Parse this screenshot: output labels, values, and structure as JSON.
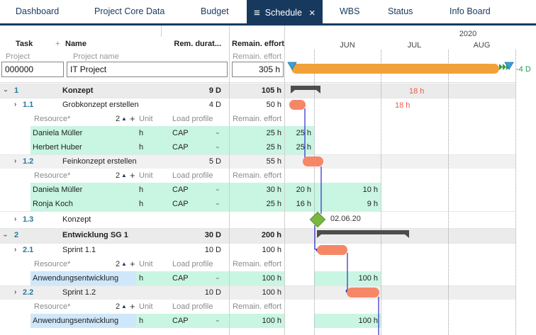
{
  "nav": {
    "tabs": [
      {
        "label": "Dashboard",
        "active": false
      },
      {
        "label": "Project Core Data",
        "active": false
      },
      {
        "label": "Budget",
        "active": false
      },
      {
        "label": "Schedule",
        "active": true
      },
      {
        "label": "WBS",
        "active": false
      },
      {
        "label": "Status",
        "active": false
      },
      {
        "label": "Info Board",
        "active": false
      }
    ],
    "active_tab_icons": [
      "menu-icon",
      "close-icon"
    ]
  },
  "columns": {
    "task": "Task",
    "add": "+",
    "name": "Name",
    "duration": "Rem. durat...",
    "effort": "Remain. effort"
  },
  "subcolumns": {
    "project": "Project",
    "project_name": "Project name",
    "effort": "Remain. effort"
  },
  "project": {
    "id": "000000",
    "name": "IT Project",
    "effort": "305 h",
    "schedule_delta": "-4 D"
  },
  "timeline": {
    "year": "2020",
    "months": [
      "JUN",
      "JUL",
      "AUG"
    ]
  },
  "resource_columns": {
    "resource": "Resource*",
    "sort_count": "2",
    "sort_icon": "▲",
    "add": "+",
    "unit": "Unit",
    "load_profile": "Load profile",
    "effort": "Remain. effort"
  },
  "rows": [
    {
      "kind": "task",
      "level": 1,
      "expanded": true,
      "num": "1",
      "name": "Konzept",
      "duration": "9 D",
      "effort": "105 h",
      "gantt": {
        "type": "summary",
        "label": "18 h"
      }
    },
    {
      "kind": "task",
      "level": 2,
      "num": "1.1",
      "name": "Grobkonzept erstellen",
      "duration": "4 D",
      "effort": "50 h",
      "gantt": {
        "type": "bar",
        "label": "18 h"
      }
    },
    {
      "kind": "resource_header"
    },
    {
      "kind": "resource",
      "name": "Daniela Müller",
      "unit": "h",
      "load": "CAP",
      "effort": "25 h",
      "segments": [
        {
          "value": "25 h"
        }
      ]
    },
    {
      "kind": "resource",
      "name": "Herbert Huber",
      "unit": "h",
      "load": "CAP",
      "effort": "25 h",
      "segments": [
        {
          "value": "25 h"
        }
      ]
    },
    {
      "kind": "task",
      "level": 2,
      "num": "1.2",
      "name": "Feinkonzept erstellen",
      "duration": "5 D",
      "effort": "55 h",
      "gantt": {
        "type": "bar"
      }
    },
    {
      "kind": "resource_header"
    },
    {
      "kind": "resource",
      "name": "Daniela Müller",
      "unit": "h",
      "load": "CAP",
      "effort": "30 h",
      "segments": [
        {
          "value": "20 h"
        },
        {
          "value": "10 h"
        }
      ]
    },
    {
      "kind": "resource",
      "name": "Ronja Koch",
      "unit": "h",
      "load": "CAP",
      "effort": "25 h",
      "segments": [
        {
          "value": "16 h"
        },
        {
          "value": "9 h"
        }
      ]
    },
    {
      "kind": "task",
      "level": 2,
      "num": "1.3",
      "name": "Konzept",
      "duration": "",
      "effort": "",
      "gantt": {
        "type": "milestone",
        "label": "02.06.20"
      }
    },
    {
      "kind": "task",
      "level": 1,
      "expanded": true,
      "num": "2",
      "name": "Entwicklung SG 1",
      "duration": "30 D",
      "effort": "200 h",
      "gantt": {
        "type": "summary"
      }
    },
    {
      "kind": "task",
      "level": 2,
      "num": "2.1",
      "name": "Sprint 1.1",
      "duration": "10 D",
      "effort": "100 h",
      "gantt": {
        "type": "bar"
      }
    },
    {
      "kind": "resource_header"
    },
    {
      "kind": "resource",
      "name": "Anwendungsentwicklung",
      "unit": "h",
      "load": "CAP",
      "effort": "100 h",
      "highlight": "blue",
      "segments": [
        {
          "value": "100 h"
        }
      ]
    },
    {
      "kind": "task",
      "level": 2,
      "num": "2.2",
      "name": "Sprint 1.2",
      "duration": "10 D",
      "effort": "100 h",
      "gantt": {
        "type": "bar"
      }
    },
    {
      "kind": "resource_header"
    },
    {
      "kind": "resource",
      "name": "Anwendungsentwicklung",
      "unit": "h",
      "load": "CAP",
      "effort": "100 h",
      "highlight": "blue",
      "segments": [
        {
          "value": "100 h"
        }
      ]
    }
  ],
  "colors": {
    "navy": "#17395e",
    "task_number_blue": "#2279a0",
    "project_bar_orange": "#f1a13a",
    "task_bar_coral": "#f58767",
    "summary_bar_gray": "#4d4d4d",
    "milestone_green": "#7ab640",
    "dependency_blue": "#2a2ac8",
    "overload_red": "#ee5a47",
    "delta_green": "#1f9e4e",
    "resource_mint": "#c9f5e3",
    "resource_blue": "#cfe7fa",
    "row_shade_gray": "#ededed"
  }
}
